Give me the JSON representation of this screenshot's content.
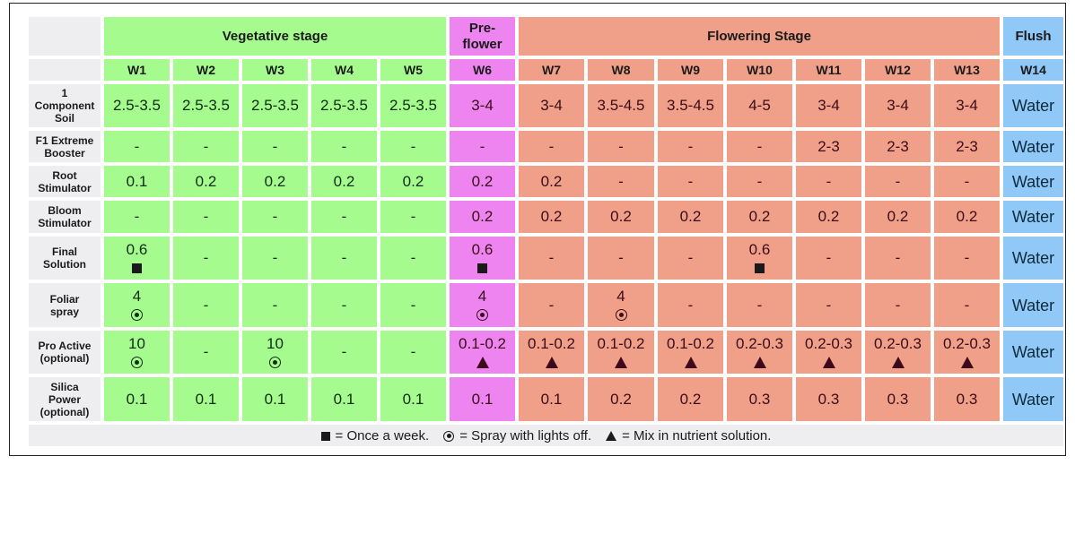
{
  "stages": {
    "vegetative": "Vegetative stage",
    "preflower": "Pre-\nflower",
    "preflower_line1": "Pre-",
    "preflower_line2": "flower",
    "flowering": "Flowering Stage",
    "flush": "Flush"
  },
  "weeks": [
    "W1",
    "W2",
    "W3",
    "W4",
    "W5",
    "W6",
    "W7",
    "W8",
    "W9",
    "W10",
    "W11",
    "W12",
    "W13",
    "W14"
  ],
  "colors": {
    "vegetative": "#a6fb8f",
    "preflower": "#ee84f0",
    "flowering": "#f0a088",
    "flush": "#90c8f8",
    "label": "#eeeef1"
  },
  "rows": [
    {
      "label_lines": [
        "1",
        "Component",
        "Soil"
      ],
      "values": [
        "2.5-3.5",
        "2.5-3.5",
        "2.5-3.5",
        "2.5-3.5",
        "2.5-3.5",
        "3-4",
        "3-4",
        "3.5-4.5",
        "3.5-4.5",
        "4-5",
        "3-4",
        "3-4",
        "3-4",
        "Water"
      ]
    },
    {
      "label_lines": [
        "F1 Extreme",
        "Booster"
      ],
      "values": [
        "-",
        "-",
        "-",
        "-",
        "-",
        "-",
        "-",
        "-",
        "-",
        "-",
        "2-3",
        "2-3",
        "2-3",
        "Water"
      ]
    },
    {
      "label_lines": [
        "Root",
        "Stimulator"
      ],
      "values": [
        "0.1",
        "0.2",
        "0.2",
        "0.2",
        "0.2",
        "0.2",
        "0.2",
        "-",
        "-",
        "-",
        "-",
        "-",
        "-",
        "Water"
      ]
    },
    {
      "label_lines": [
        "Bloom",
        "Stimulator"
      ],
      "values": [
        "-",
        "-",
        "-",
        "-",
        "-",
        "0.2",
        "0.2",
        "0.2",
        "0.2",
        "0.2",
        "0.2",
        "0.2",
        "0.2",
        "Water"
      ]
    },
    {
      "label_lines": [
        "Final",
        "Solution"
      ],
      "values": [
        "0.6",
        "-",
        "-",
        "-",
        "-",
        "0.6",
        "-",
        "-",
        "-",
        "0.6",
        "-",
        "-",
        "-",
        "Water"
      ],
      "symbol": "square-icon",
      "symbol_cols": [
        0,
        5,
        9
      ]
    },
    {
      "label_lines": [
        "Foliar",
        "spray"
      ],
      "values": [
        "4",
        "-",
        "-",
        "-",
        "-",
        "4",
        "-",
        "4",
        "-",
        "-",
        "-",
        "-",
        "-",
        "Water"
      ],
      "symbol": "circle-dot-icon",
      "symbol_cols": [
        0,
        5,
        7
      ]
    },
    {
      "label_lines": [
        "Pro Active",
        "(optional)"
      ],
      "values": [
        "10",
        "-",
        "10",
        "-",
        "-",
        "0.1-0.2",
        "0.1-0.2",
        "0.1-0.2",
        "0.1-0.2",
        "0.2-0.3",
        "0.2-0.3",
        "0.2-0.3",
        "0.2-0.3",
        "Water"
      ],
      "symbol_map": {
        "0": "circle-dot-icon",
        "2": "circle-dot-icon",
        "5": "triangle-icon",
        "6": "triangle-icon",
        "7": "triangle-icon",
        "8": "triangle-icon",
        "9": "triangle-icon",
        "10": "triangle-icon",
        "11": "triangle-icon",
        "12": "triangle-icon"
      }
    },
    {
      "label_lines": [
        "Silica",
        "Power",
        "(optional)"
      ],
      "values": [
        "0.1",
        "0.1",
        "0.1",
        "0.1",
        "0.1",
        "0.1",
        "0.1",
        "0.2",
        "0.2",
        "0.3",
        "0.3",
        "0.3",
        "0.3",
        "Water"
      ]
    }
  ],
  "legend": [
    {
      "icon": "square-icon",
      "text": "= Once a week."
    },
    {
      "icon": "circle-dot-icon",
      "text": "= Spray with lights off."
    },
    {
      "icon": "triangle-icon",
      "text": "= Mix in nutrient solution."
    }
  ]
}
